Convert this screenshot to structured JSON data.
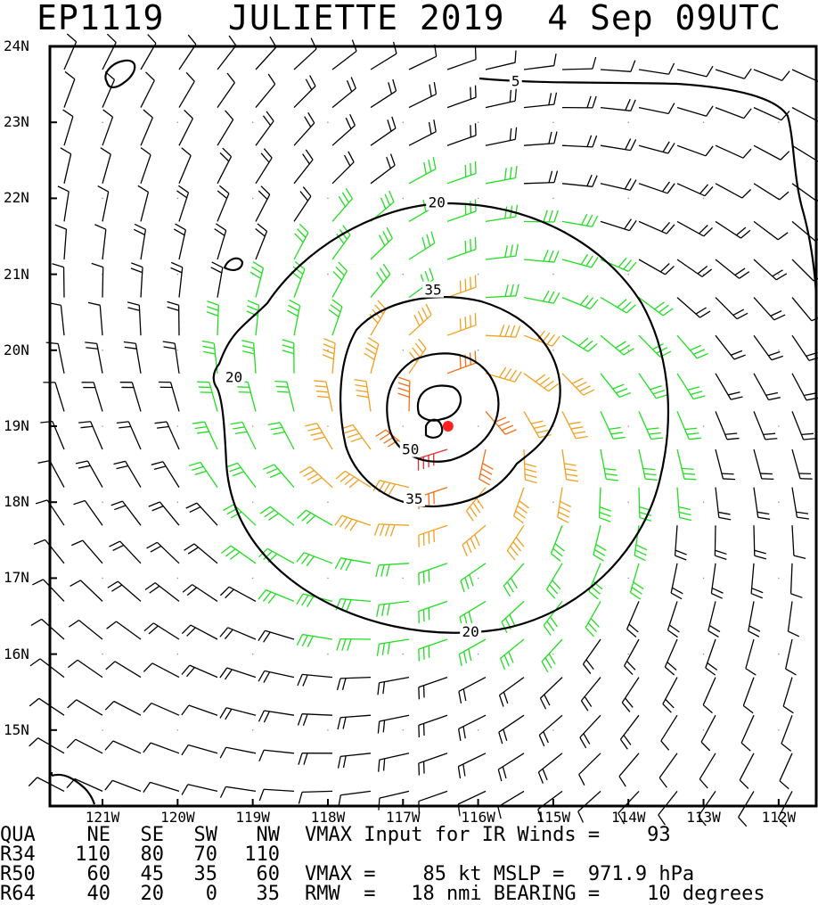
{
  "title": {
    "storm_id": "EP1119",
    "name_year": "JULIETTE 2019",
    "date_time": "4 Sep 09UTC"
  },
  "map": {
    "lat_labels": [
      "24N",
      "23N",
      "22N",
      "21N",
      "20N",
      "19N",
      "18N",
      "17N",
      "16N",
      "15N"
    ],
    "lon_labels": [
      "121W",
      "120W",
      "119W",
      "118W",
      "117W",
      "116W",
      "115W",
      "114W",
      "113W",
      "112W"
    ],
    "lat_range": [
      14.0,
      24.0
    ],
    "lon_range": [
      -121.7,
      -111.5
    ],
    "storm_center": {
      "lat": 19.0,
      "lon": -116.4
    },
    "contour_labels": [
      {
        "value": "5",
        "lat": 23.55,
        "lon": -115.5
      },
      {
        "value": "20",
        "lat": 21.95,
        "lon": -116.55
      },
      {
        "value": "20",
        "lat": 19.65,
        "lon": -119.25
      },
      {
        "value": "20",
        "lat": 16.3,
        "lon": -116.1
      },
      {
        "value": "35",
        "lat": 20.8,
        "lon": -116.6
      },
      {
        "value": "35",
        "lat": 18.05,
        "lon": -116.85
      },
      {
        "value": "50",
        "lat": 18.7,
        "lon": -116.9
      }
    ],
    "colors": {
      "calm": "#000000",
      "gale": "#22dd22",
      "storm": "#f0a020",
      "strong": "#f07018",
      "hurricane": "#e03030",
      "center": "#ff2020"
    }
  },
  "table": {
    "headers": [
      "QUA",
      "NE",
      "SE",
      "SW",
      "NW"
    ],
    "rows": [
      {
        "label": "R34",
        "values": [
          "110",
          "80",
          "70",
          "110"
        ]
      },
      {
        "label": "R50",
        "values": [
          "60",
          "45",
          "35",
          "60"
        ]
      },
      {
        "label": "R64",
        "values": [
          "40",
          "20",
          "0",
          "35"
        ]
      }
    ]
  },
  "info": {
    "line1": "VMAX Input for IR Winds =    93",
    "line2": "VMAX =    85 kt MSLP =  971.9 hPa",
    "line3": "RMW  =   18 nmi BEARING =    10 degrees"
  }
}
